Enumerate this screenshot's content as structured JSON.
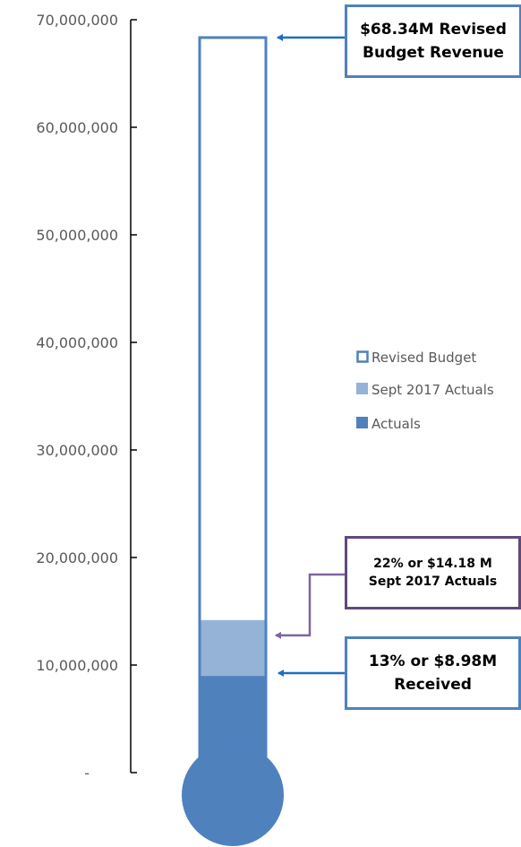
{
  "chart_data": {
    "type": "bar",
    "subtype": "thermometer",
    "title": "",
    "xlabel": "",
    "ylabel": "",
    "ylim": [
      0,
      70000000
    ],
    "y_ticks": [
      0,
      10000000,
      20000000,
      30000000,
      40000000,
      50000000,
      60000000,
      70000000
    ],
    "y_tick_labels": [
      "-",
      "10,000,000",
      "20,000,000",
      "30,000,000",
      "40,000,000",
      "50,000,000",
      "60,000,000",
      "70,000,000"
    ],
    "grid": false,
    "legend_position": "right",
    "series": [
      {
        "name": "Revised Budget",
        "value": 68340000,
        "style": "outline",
        "color": "#4f81bd"
      },
      {
        "name": "Sept 2017 Actuals",
        "value": 14180000,
        "style": "fill",
        "color": "#95b3d7"
      },
      {
        "name": "Actuals",
        "value": 8980000,
        "style": "fill",
        "color": "#4f81bd"
      }
    ],
    "annotations": [
      {
        "id": "revised",
        "text": "$68.34M Revised\nBudget Revenue",
        "target_value": 68340000,
        "color": "#4f81bd"
      },
      {
        "id": "sept",
        "text": "22% or $14.18 M\nSept 2017 Actuals",
        "target_value": 14180000,
        "color": "#8064a2"
      },
      {
        "id": "received",
        "text": "13% or $8.98M\nReceived",
        "target_value": 8980000,
        "color": "#4f81bd"
      }
    ]
  }
}
